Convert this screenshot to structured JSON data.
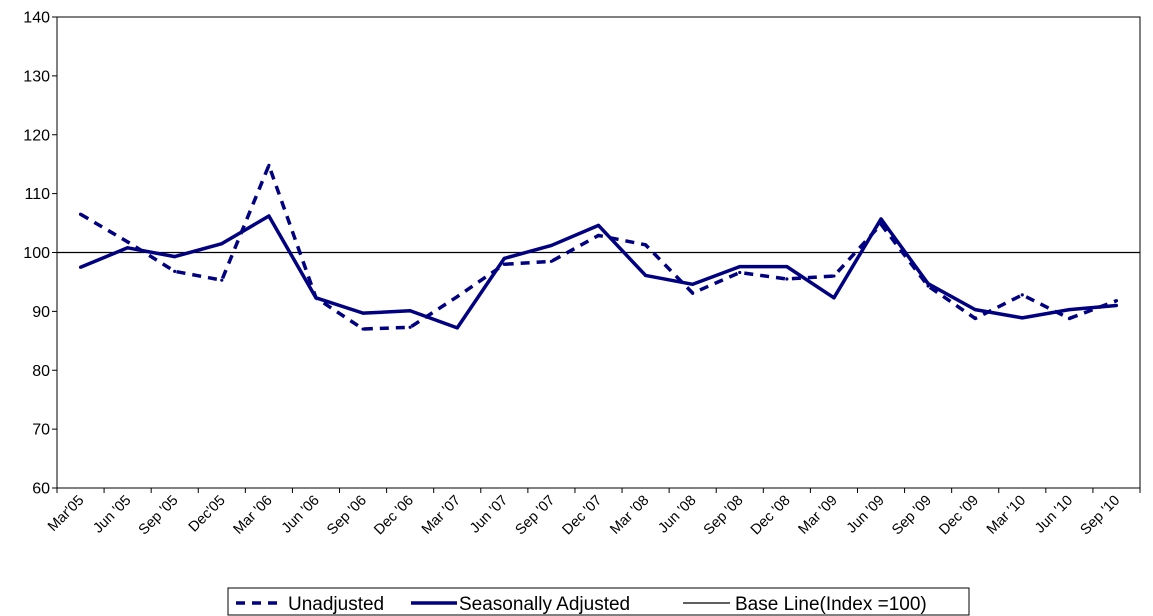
{
  "chart_data": {
    "type": "line",
    "categories": [
      "Mar'05",
      "Jun '05",
      "Sep '05",
      "Dec'05",
      "Mar '06",
      "Jun '06",
      "Sep '06",
      "Dec '06",
      "Mar '07",
      "Jun '07",
      "Sep '07",
      "Dec '07",
      "Mar '08",
      "Jun '08",
      "Sep '08",
      "Dec '08",
      "Mar '09",
      "Jun '09",
      "Sep '09",
      "Dec '09",
      "Mar '10",
      "Jun '10",
      "Sep '10"
    ],
    "ylim": [
      60,
      140
    ],
    "yticks": [
      60,
      70,
      80,
      90,
      100,
      110,
      120,
      130,
      140
    ],
    "grid": false,
    "legend_position": "bottom",
    "series": [
      {
        "name": "Unadjusted",
        "style": "dashed",
        "color": "#000080",
        "values": [
          106.5,
          101.8,
          96.8,
          95.3,
          114.8,
          92.3,
          87.0,
          87.3,
          92.5,
          98.0,
          98.5,
          102.9,
          101.3,
          93.1,
          96.6,
          95.5,
          96.0,
          104.8,
          94.3,
          88.8,
          92.8,
          88.8,
          91.8
        ]
      },
      {
        "name": "Seasonally Adjusted",
        "style": "solid",
        "color": "#000080",
        "values": [
          97.5,
          100.8,
          99.3,
          101.5,
          106.2,
          92.3,
          89.7,
          90.1,
          87.2,
          99.0,
          101.2,
          104.6,
          96.1,
          94.6,
          97.6,
          97.6,
          92.3,
          105.7,
          94.7,
          90.3,
          88.9,
          90.3,
          91.0
        ]
      },
      {
        "name": "Base Line(Index =100)",
        "style": "thin",
        "color": "#000000",
        "values": [
          100,
          100,
          100,
          100,
          100,
          100,
          100,
          100,
          100,
          100,
          100,
          100,
          100,
          100,
          100,
          100,
          100,
          100,
          100,
          100,
          100,
          100,
          100
        ]
      }
    ]
  }
}
